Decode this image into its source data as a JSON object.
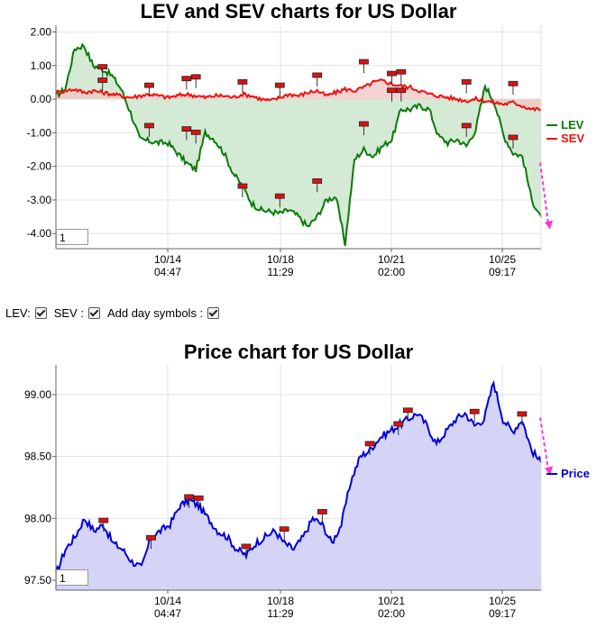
{
  "chart_data": [
    {
      "type": "line",
      "title": "LEV and SEV charts for US Dollar",
      "y_ticks": [
        "2.00",
        "1.00",
        "0.00",
        "-1.00",
        "-2.00",
        "-3.00",
        "-4.00"
      ],
      "ylim": [
        -4.45,
        2.2
      ],
      "x_ticks": [
        {
          "date": "10/14",
          "time": "04:47"
        },
        {
          "date": "10/18",
          "time": "11:29"
        },
        {
          "date": "10/21",
          "time": "02:00"
        },
        {
          "date": "10/25",
          "time": "09:17"
        }
      ],
      "grid": true,
      "legend_position": "right",
      "series": [
        {
          "name": "LEV",
          "color": "#0a7a0a",
          "fill": "#cce6cc",
          "values": [
            0.1,
            0.3,
            1.5,
            1.6,
            1.0,
            0.9,
            0.7,
            0.3,
            -0.4,
            -1.2,
            -1.25,
            -1.3,
            -1.3,
            -1.6,
            -1.9,
            -2.1,
            -1.0,
            -1.2,
            -1.6,
            -2.2,
            -2.6,
            -3.1,
            -3.3,
            -3.35,
            -3.4,
            -3.3,
            -3.5,
            -3.8,
            -3.5,
            -3.0,
            -2.9,
            -4.3,
            -1.8,
            -1.5,
            -1.7,
            -1.4,
            -1.2,
            -0.3,
            -0.3,
            -0.2,
            -0.3,
            -1.1,
            -1.3,
            -1.2,
            -1.4,
            -0.9,
            0.4,
            -0.1,
            -1.1,
            -1.6,
            -1.7,
            -3.0,
            -3.5
          ]
        },
        {
          "name": "SEV",
          "color": "#ee1111",
          "fill": "#f2c4c4",
          "values": [
            0.2,
            0.25,
            0.3,
            0.2,
            0.25,
            0.2,
            0.15,
            0.1,
            0.05,
            0.1,
            0.15,
            0.1,
            0.05,
            0.1,
            0.15,
            0.1,
            0.05,
            0.1,
            0.1,
            0.05,
            0.15,
            0.1,
            0.0,
            -0.05,
            0.05,
            0.15,
            0.1,
            0.2,
            0.25,
            0.1,
            0.2,
            0.3,
            0.25,
            0.35,
            0.5,
            0.55,
            0.45,
            0.4,
            0.35,
            0.25,
            0.15,
            0.1,
            0.05,
            0.0,
            -0.05,
            0.0,
            -0.05,
            -0.1,
            -0.15,
            -0.1,
            -0.2,
            -0.3,
            -0.3
          ]
        }
      ],
      "day_markers": [
        {
          "i": 5,
          "v": 0.55
        },
        {
          "i": 5,
          "v": 0.95
        },
        {
          "i": 10,
          "v": 0.4
        },
        {
          "i": 10,
          "v": -0.8
        },
        {
          "i": 14,
          "v": 0.6
        },
        {
          "i": 15,
          "v": 0.65
        },
        {
          "i": 14,
          "v": -0.9
        },
        {
          "i": 15,
          "v": -1.0
        },
        {
          "i": 20,
          "v": 0.5
        },
        {
          "i": 20,
          "v": -2.6
        },
        {
          "i": 24,
          "v": 0.4
        },
        {
          "i": 24,
          "v": -2.9
        },
        {
          "i": 28,
          "v": 0.7
        },
        {
          "i": 28,
          "v": -2.45
        },
        {
          "i": 33,
          "v": 1.1
        },
        {
          "i": 33,
          "v": -0.75
        },
        {
          "i": 36,
          "v": 0.75
        },
        {
          "i": 37,
          "v": 0.8
        },
        {
          "i": 36,
          "v": 0.25
        },
        {
          "i": 37,
          "v": 0.25
        },
        {
          "i": 44,
          "v": 0.5
        },
        {
          "i": 44,
          "v": -0.8
        },
        {
          "i": 49,
          "v": 0.45
        },
        {
          "i": 49,
          "v": -1.15
        }
      ],
      "zoom_value": "1"
    },
    {
      "type": "area",
      "title": "Price chart for US Dollar",
      "y_ticks": [
        "99.00",
        "98.50",
        "98.00",
        "97.50"
      ],
      "ylim": [
        97.42,
        99.24
      ],
      "x_ticks": [
        {
          "date": "10/14",
          "time": "04:47"
        },
        {
          "date": "10/18",
          "time": "11:29"
        },
        {
          "date": "10/21",
          "time": "02:00"
        },
        {
          "date": "10/25",
          "time": "09:17"
        }
      ],
      "grid": true,
      "legend_position": "right",
      "series": [
        {
          "name": "Price",
          "color": "#0000dd",
          "fill": "#ccccf5",
          "values": [
            97.55,
            97.75,
            97.85,
            98.0,
            97.9,
            97.95,
            97.8,
            97.75,
            97.65,
            97.6,
            97.85,
            97.9,
            97.95,
            98.1,
            98.15,
            98.1,
            98.0,
            97.9,
            97.85,
            97.75,
            97.7,
            97.8,
            97.85,
            97.9,
            97.8,
            97.75,
            97.85,
            98.0,
            97.95,
            97.8,
            97.95,
            98.3,
            98.5,
            98.55,
            98.65,
            98.7,
            98.75,
            98.8,
            98.85,
            98.75,
            98.6,
            98.7,
            98.8,
            98.85,
            98.75,
            98.8,
            99.1,
            98.8,
            98.7,
            98.8,
            98.55,
            98.45
          ]
        }
      ],
      "day_markers": [
        {
          "i": 5,
          "v": 97.98
        },
        {
          "i": 10,
          "v": 97.84
        },
        {
          "i": 14,
          "v": 98.17
        },
        {
          "i": 15,
          "v": 98.16
        },
        {
          "i": 20,
          "v": 97.77
        },
        {
          "i": 24,
          "v": 97.91
        },
        {
          "i": 28,
          "v": 98.05
        },
        {
          "i": 33,
          "v": 98.6
        },
        {
          "i": 36,
          "v": 98.76
        },
        {
          "i": 37,
          "v": 98.87
        },
        {
          "i": 44,
          "v": 98.86
        },
        {
          "i": 49,
          "v": 98.84
        }
      ],
      "zoom_value": "1"
    }
  ],
  "controls": {
    "lev_label": "LEV:",
    "sev_label": "SEV :",
    "day_label": "Add day symbols :"
  },
  "colors": {
    "grid": "#e2e2e2",
    "axis": "#666666",
    "trend_arrow": "#ff33cc",
    "marker_fill": "#dd1111"
  }
}
